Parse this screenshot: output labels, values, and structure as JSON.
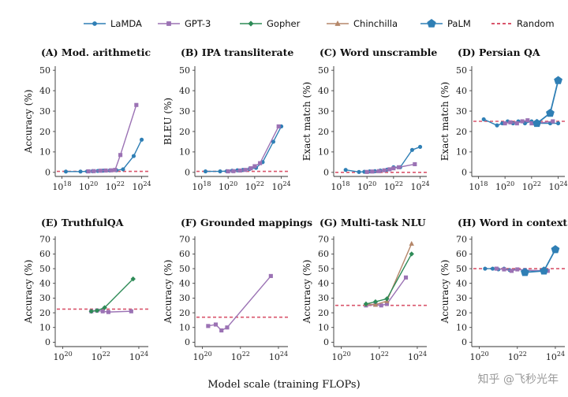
{
  "chart_data": {
    "type": "line",
    "xlabel": "Model scale (training FLOPs)",
    "legend": [
      {
        "name": "LaMDA",
        "color": "#2f7fb5",
        "marker": "circle"
      },
      {
        "name": "GPT-3",
        "color": "#9b72b4",
        "marker": "square"
      },
      {
        "name": "Gopher",
        "color": "#2e8b57",
        "marker": "diamond"
      },
      {
        "name": "Chinchilla",
        "color": "#b5876a",
        "marker": "triangle"
      },
      {
        "name": "PaLM",
        "color": "#2f7fb5",
        "marker": "pentagon"
      },
      {
        "name": "Random",
        "color": "#d9556b",
        "marker": "dashed"
      }
    ],
    "panels": [
      {
        "title": "(A) Mod. arithmetic",
        "ylabel": "Accuracy (%)",
        "xlim": [
          17.5,
          24.5
        ],
        "xticks": [
          18,
          20,
          22,
          24
        ],
        "ylim": [
          -2,
          52
        ],
        "yticks": [
          0,
          10,
          20,
          30,
          40,
          50
        ],
        "random": 0.5,
        "series": [
          {
            "name": "LaMDA",
            "x": [
              18.3,
              19.4,
              19.9,
              20.3,
              20.7,
              21.1,
              21.6,
              22.1,
              22.6,
              23.4,
              24.0
            ],
            "y": [
              0.4,
              0.4,
              0.5,
              0.6,
              0.7,
              0.8,
              0.9,
              1.0,
              1.5,
              8,
              16
            ]
          },
          {
            "name": "GPT-3",
            "x": [
              20.0,
              20.4,
              20.9,
              21.3,
              21.7,
              22.0,
              22.4,
              23.6
            ],
            "y": [
              0.5,
              0.6,
              0.8,
              0.9,
              1.0,
              1.2,
              8.5,
              33
            ]
          }
        ]
      },
      {
        "title": "(B) IPA transliterate",
        "ylabel": "BLEU (%)",
        "xlim": [
          17.5,
          24.5
        ],
        "xticks": [
          18,
          20,
          22,
          24
        ],
        "ylim": [
          -2,
          52
        ],
        "yticks": [
          0,
          10,
          20,
          30,
          40,
          50
        ],
        "random": 0.5,
        "series": [
          {
            "name": "LaMDA",
            "x": [
              18.3,
              19.4,
              19.9,
              20.3,
              20.7,
              21.1,
              21.6,
              22.1,
              22.6,
              23.4,
              24.0
            ],
            "y": [
              0.5,
              0.5,
              0.6,
              0.8,
              1.0,
              1.2,
              1.6,
              2.2,
              5.0,
              15,
              22.5
            ]
          },
          {
            "name": "GPT-3",
            "x": [
              20.0,
              20.4,
              20.9,
              21.3,
              21.7,
              22.0,
              22.4,
              23.8
            ],
            "y": [
              0.5,
              0.6,
              0.9,
              1.2,
              2.0,
              3.0,
              4.5,
              22.5
            ]
          }
        ]
      },
      {
        "title": "(C) Word unscramble",
        "ylabel": "Exact match (%)",
        "xlim": [
          17.5,
          24.5
        ],
        "xticks": [
          18,
          20,
          22,
          24
        ],
        "ylim": [
          -2,
          52
        ],
        "yticks": [
          0,
          10,
          20,
          30,
          40,
          50
        ],
        "random": 0,
        "series": [
          {
            "name": "LaMDA",
            "x": [
              18.4,
              19.4,
              19.8,
              20.2,
              20.6,
              21.0,
              21.5,
              22.0,
              22.5,
              23.4,
              24.0
            ],
            "y": [
              1.2,
              0.2,
              0.3,
              0.5,
              0.6,
              0.9,
              1.3,
              2.5,
              2.5,
              11,
              12.5
            ]
          },
          {
            "name": "GPT-3",
            "x": [
              20.0,
              20.4,
              20.9,
              21.3,
              21.7,
              22.0,
              22.4,
              23.6
            ],
            "y": [
              0.2,
              0.4,
              0.6,
              1.0,
              1.5,
              2.0,
              2.5,
              4.0
            ]
          }
        ]
      },
      {
        "title": "(D) Persian QA",
        "ylabel": "Exact match (%)",
        "xlim": [
          17.5,
          24.5
        ],
        "xticks": [
          18,
          20,
          22,
          24
        ],
        "ylim": [
          -2,
          52
        ],
        "yticks": [
          0,
          10,
          20,
          30,
          40,
          50
        ],
        "random": 25,
        "series": [
          {
            "name": "LaMDA",
            "x": [
              18.4,
              19.4,
              19.8,
              20.2,
              20.6,
              21.0,
              21.5,
              22.0,
              22.5,
              23.4,
              24.0
            ],
            "y": [
              26,
              23,
              24,
              25,
              24,
              25,
              24,
              25,
              24,
              24,
              24
            ]
          },
          {
            "name": "GPT-3",
            "x": [
              20.0,
              20.4,
              20.9,
              21.3,
              21.7,
              22.0,
              22.4,
              23.6
            ],
            "y": [
              24,
              24.5,
              24,
              25,
              25.5,
              24,
              24,
              25
            ]
          },
          {
            "name": "PaLM",
            "x": [
              22.4,
              23.4,
              24.0
            ],
            "y": [
              24,
              29,
              45
            ]
          }
        ]
      },
      {
        "title": "(E) TruthfulQA",
        "ylabel": "Accuracy (%)",
        "xlim": [
          19.6,
          24.5
        ],
        "xticks": [
          20,
          22,
          24
        ],
        "ylim": [
          -3,
          72
        ],
        "yticks": [
          0,
          10,
          20,
          30,
          40,
          50,
          60,
          70
        ],
        "random": 22.5,
        "series": [
          {
            "name": "GPT-3",
            "x": [
              21.5,
              21.8,
              22.1,
              22.4,
              23.6
            ],
            "y": [
              21,
              21.5,
              21,
              20.5,
              21
            ]
          },
          {
            "name": "Gopher",
            "x": [
              21.5,
              21.8,
              22.2,
              23.7
            ],
            "y": [
              21,
              21.5,
              23.5,
              43
            ]
          }
        ]
      },
      {
        "title": "(F) Grounded mappings",
        "ylabel": "Accuracy (%)",
        "xlim": [
          19.6,
          24.5
        ],
        "xticks": [
          20,
          22,
          24
        ],
        "ylim": [
          -3,
          72
        ],
        "yticks": [
          0,
          10,
          20,
          30,
          40,
          50,
          60,
          70
        ],
        "random": 17,
        "series": [
          {
            "name": "GPT-3",
            "x": [
              20.3,
              20.7,
              21.0,
              21.3,
              23.6
            ],
            "y": [
              11,
              12,
              8,
              10,
              45
            ]
          }
        ]
      },
      {
        "title": "(G) Multi-task NLU",
        "ylabel": "Accuracy (%)",
        "xlim": [
          19.6,
          24.5
        ],
        "xticks": [
          20,
          22,
          24
        ],
        "ylim": [
          -3,
          72
        ],
        "yticks": [
          0,
          10,
          20,
          30,
          40,
          50,
          60,
          70
        ],
        "random": 25,
        "series": [
          {
            "name": "GPT-3",
            "x": [
              21.3,
              21.8,
              22.1,
              22.4,
              23.4
            ],
            "y": [
              25,
              25.5,
              25,
              26,
              44
            ]
          },
          {
            "name": "Chinchilla",
            "x": [
              21.3,
              21.8,
              22.4,
              23.7
            ],
            "y": [
              26,
              25.5,
              28,
              67
            ]
          },
          {
            "name": "Gopher",
            "x": [
              21.3,
              21.8,
              22.4,
              23.7
            ],
            "y": [
              26,
              27.5,
              29.5,
              60
            ]
          }
        ]
      },
      {
        "title": "(H) Word in context",
        "ylabel": "Accuracy (%)",
        "xlim": [
          19.6,
          24.5
        ],
        "xticks": [
          20,
          22,
          24
        ],
        "ylim": [
          -3,
          72
        ],
        "yticks": [
          0,
          10,
          20,
          30,
          40,
          50,
          60,
          70
        ],
        "random": 50,
        "series": [
          {
            "name": "LaMDA",
            "x": [
              20.3,
              20.7,
              21.0,
              21.3,
              21.6,
              22.0,
              22.4,
              23.4
            ],
            "y": [
              50,
              50,
              49.5,
              50,
              49,
              49.5,
              49,
              48
            ]
          },
          {
            "name": "GPT-3",
            "x": [
              20.9,
              21.3,
              21.7,
              22.0,
              22.4,
              23.6
            ],
            "y": [
              50,
              49.5,
              48.5,
              49.5,
              49,
              48.5
            ]
          },
          {
            "name": "PaLM",
            "x": [
              22.4,
              23.4,
              24.0
            ],
            "y": [
              47.5,
              48.5,
              63
            ]
          }
        ]
      }
    ]
  },
  "watermark": "知乎 @飞秒光年"
}
